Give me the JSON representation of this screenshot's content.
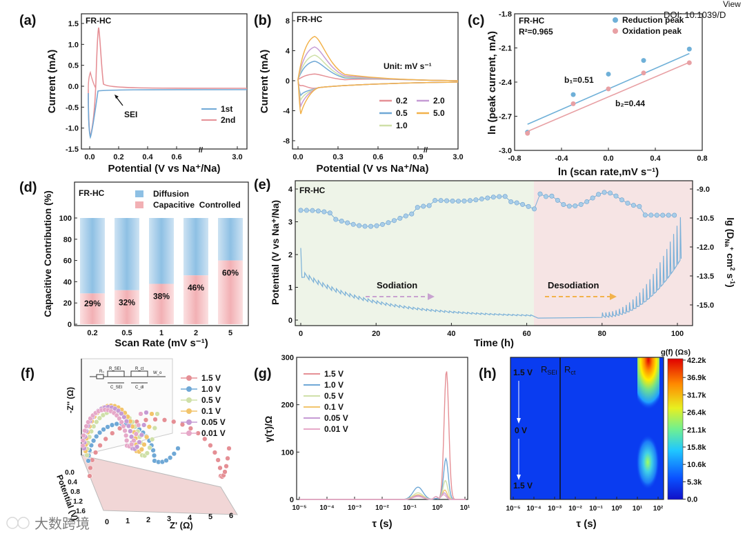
{
  "corner_text": [
    "View",
    "DOI: 10.1039/D"
  ],
  "watermark": "大数跨境",
  "panels": {
    "a": {
      "label": "(a)",
      "sample": "FR-HC",
      "xlabel": "Potential (V vs Na⁺/Na)",
      "ylabel": "Current (mA)",
      "xticks": [
        "0.0",
        "0.2",
        "0.4",
        "0.6",
        "3.0"
      ],
      "yticks": [
        "1.5",
        "1.0",
        "0.5",
        "0.0",
        "-0.5",
        "-1.0",
        "-1.5"
      ],
      "annotation": "SEI",
      "legend": [
        {
          "name": "1st",
          "color": "#6fa8d6"
        },
        {
          "name": "2nd",
          "color": "#e58f95"
        }
      ]
    },
    "b": {
      "label": "(b)",
      "sample": "FR-HC",
      "xlabel": "Potential (V vs Na⁺/Na)",
      "ylabel": "Current (mA)",
      "xticks": [
        "0.0",
        "0.3",
        "0.6",
        "0.9",
        "3.0"
      ],
      "yticks": [
        "8",
        "4",
        "0",
        "-4",
        "-8"
      ],
      "unit_label": "Unit: mV s⁻¹",
      "legend": [
        {
          "name": "0.2",
          "color": "#e58f95"
        },
        {
          "name": "2.0",
          "color": "#c59ad4"
        },
        {
          "name": "0.5",
          "color": "#6fa8d6"
        },
        {
          "name": "5.0",
          "color": "#f2b24b"
        },
        {
          "name": "1.0",
          "color": "#cfe0a8"
        }
      ]
    },
    "c": {
      "label": "(c)",
      "sample": "FR-HC",
      "r2": "R²=0.965",
      "xlabel": "ln (scan rate,mV s⁻¹)",
      "ylabel": "ln (peak current, mA)",
      "xticks": [
        "-0.8",
        "-0.4",
        "0.0",
        "0.4",
        "0.8"
      ],
      "yticks": [
        "-1.8",
        "-2.1",
        "-2.4",
        "-2.7",
        "-3.0"
      ],
      "b1": "b₁=0.51",
      "b2": "b₂=0.44",
      "legend": [
        {
          "name": "Reduction peak",
          "color": "#6fb0d8"
        },
        {
          "name": "Oxidation peak",
          "color": "#e8a0a4"
        }
      ]
    },
    "d": {
      "label": "(d)",
      "sample": "FR-HC",
      "xlabel": "Scan Rate (mV s⁻¹)",
      "ylabel": "Capacitive Contribution (%)",
      "yticks": [
        "100",
        "80",
        "60",
        "40",
        "20",
        "0"
      ],
      "legend": [
        {
          "name": "Diffusion Controlled",
          "color": "#8ec0e4"
        },
        {
          "name": "Capacitive",
          "color": "#f2b0b4"
        }
      ]
    },
    "e": {
      "label": "(e)",
      "sample": "FR-HC",
      "xlabel": "Time (h)",
      "ylabel": "Potential (V vs Na⁺/Na)",
      "ylabel2": "lg (D_Na⁺ cm² s⁻¹)",
      "xticks": [
        "0",
        "20",
        "40",
        "60",
        "80",
        "100"
      ],
      "yticks": [
        "0",
        "1",
        "2",
        "3",
        "4"
      ],
      "y2ticks": [
        "-9.0",
        "-10.5",
        "-12.0",
        "-13.5",
        "-15.0"
      ],
      "sodiation": "Sodiation",
      "desodiation": "Desodiation"
    },
    "f": {
      "label": "(f)",
      "zlabel": "-Z'' (Ω)",
      "xlabel": "Z' (Ω)",
      "ylabel": "Potential (V)",
      "xticks": [
        "0",
        "1",
        "2",
        "3",
        "4",
        "5",
        "6"
      ],
      "yticks": [
        "0.0",
        "0.4",
        "0.8",
        "1.2",
        "1.6"
      ],
      "legend": [
        {
          "name": "1.5 V",
          "color": "#e58f95"
        },
        {
          "name": "1.0 V",
          "color": "#6fa8d6"
        },
        {
          "name": "0.5 V",
          "color": "#cfe0a8"
        },
        {
          "name": "0.1 V",
          "color": "#f2c46b"
        },
        {
          "name": "0.05 V",
          "color": "#c59ad4"
        },
        {
          "name": "0.01 V",
          "color": "#e6a8c8"
        }
      ]
    },
    "g": {
      "label": "(g)",
      "xlabel": "τ (s)",
      "ylabel": "γ(τ)/Ω",
      "xticks": [
        "10⁻⁵",
        "10⁻⁴",
        "10⁻³",
        "10⁻²",
        "10⁻¹",
        "10⁰",
        "10¹"
      ],
      "yticks": [
        "300",
        "200",
        "100",
        "0"
      ]
    },
    "h": {
      "label": "(h)",
      "xlabel": "τ (s)",
      "colorbar_title": "g(f) (Ωs)",
      "region_labels": [
        "R_SEI",
        "R_ct"
      ],
      "potential_labels": [
        "1.5 V",
        "0 V",
        "1.5 V"
      ],
      "xticks": [
        "10⁻⁵",
        "10⁻⁴",
        "10⁻³",
        "10⁻²",
        "10⁻¹",
        "10⁰",
        "10¹",
        "10²"
      ],
      "colorbar_ticks": [
        "42.2k",
        "36.9k",
        "31.7k",
        "26.4k",
        "21.1k",
        "15.8k",
        "10.6k",
        "5.3k",
        "0.0"
      ]
    }
  },
  "chart_data": [
    {
      "type": "line",
      "title": "(a)",
      "xlabel": "Potential (V vs Na⁺/Na)",
      "ylabel": "Current (mA)",
      "xlim": [
        0,
        0.8
      ],
      "ylim": [
        -1.5,
        1.5
      ],
      "series": [
        {
          "name": "1st",
          "x": [
            0.01,
            0.03,
            0.06,
            0.08,
            0.1,
            0.2,
            0.4,
            0.6,
            0.8
          ],
          "y": [
            -0.6,
            -1.18,
            -0.9,
            0.1,
            0.2,
            0.05,
            0.02,
            0.01,
            0.0
          ]
        },
        {
          "name": "2nd",
          "x": [
            0.01,
            0.03,
            0.06,
            0.085,
            0.1,
            0.2,
            0.4,
            0.6,
            0.8
          ],
          "y": [
            -0.5,
            -1.15,
            -0.4,
            1.43,
            0.3,
            0.05,
            0.02,
            0.01,
            0.0
          ]
        }
      ]
    },
    {
      "type": "line",
      "title": "(b)",
      "xlabel": "Potential (V vs Na⁺/Na)",
      "ylabel": "Current (mA)",
      "ylim": [
        -8,
        8
      ],
      "series": [
        {
          "name": "0.2",
          "peak": 0.9
        },
        {
          "name": "0.5",
          "peak": 2.6
        },
        {
          "name": "1.0",
          "peak": 3.4
        },
        {
          "name": "2.0",
          "peak": 4.5
        },
        {
          "name": "5.0",
          "peak": 5.9
        }
      ]
    },
    {
      "type": "scatter",
      "title": "(c)",
      "xlabel": "ln (scan rate,mV s⁻¹)",
      "ylabel": "ln (peak current, mA)",
      "xlim": [
        -0.8,
        0.8
      ],
      "ylim": [
        -3.0,
        -1.8
      ],
      "series": [
        {
          "name": "Reduction peak",
          "x": [
            -0.69,
            -0.3,
            0.0,
            0.3,
            0.69
          ],
          "y": [
            -2.84,
            -2.51,
            -2.33,
            -2.21,
            -2.11
          ]
        },
        {
          "name": "Oxidation peak",
          "x": [
            -0.69,
            -0.3,
            0.0,
            0.3,
            0.69
          ],
          "y": [
            -2.85,
            -2.59,
            -2.46,
            -2.32,
            -2.23
          ]
        }
      ]
    },
    {
      "type": "bar",
      "title": "(d)",
      "xlabel": "Scan Rate (mV s⁻¹)",
      "ylabel": "Capacitive Contribution (%)",
      "ylim": [
        0,
        100
      ],
      "categories": [
        "0.2",
        "0.5",
        "1",
        "2",
        "5"
      ],
      "series": [
        {
          "name": "Capacitive",
          "values": [
            29,
            32,
            38,
            46,
            60
          ]
        },
        {
          "name": "Diffusion Controlled",
          "values": [
            71,
            68,
            62,
            54,
            40
          ]
        }
      ],
      "labels": [
        "29%",
        "32%",
        "38%",
        "46%",
        "60%"
      ]
    },
    {
      "type": "line",
      "title": "(e)",
      "xlabel": "Time (h)",
      "ylabel": "Potential (V vs Na⁺/Na)",
      "xlim": [
        0,
        105
      ],
      "ylim": [
        0,
        4
      ]
    },
    {
      "type": "scatter",
      "title": "(f)",
      "xlabel": "Z' (Ω)",
      "ylabel": "-Z'' (Ω)"
    },
    {
      "type": "line",
      "title": "(g)",
      "xlabel": "τ (s)",
      "ylabel": "γ(τ)/Ω",
      "ylim": [
        0,
        300
      ],
      "series": [
        {
          "name": "1.5 V",
          "peak_tau": "2",
          "peak": 272
        },
        {
          "name": "1.0 V",
          "peak_tau": "1.6",
          "peak": 86
        }
      ]
    },
    {
      "type": "heatmap",
      "title": "(h)",
      "xlabel": "τ (s)",
      "colorbar": "g(f) (Ωs)",
      "zlim": [
        0,
        42200
      ]
    }
  ]
}
